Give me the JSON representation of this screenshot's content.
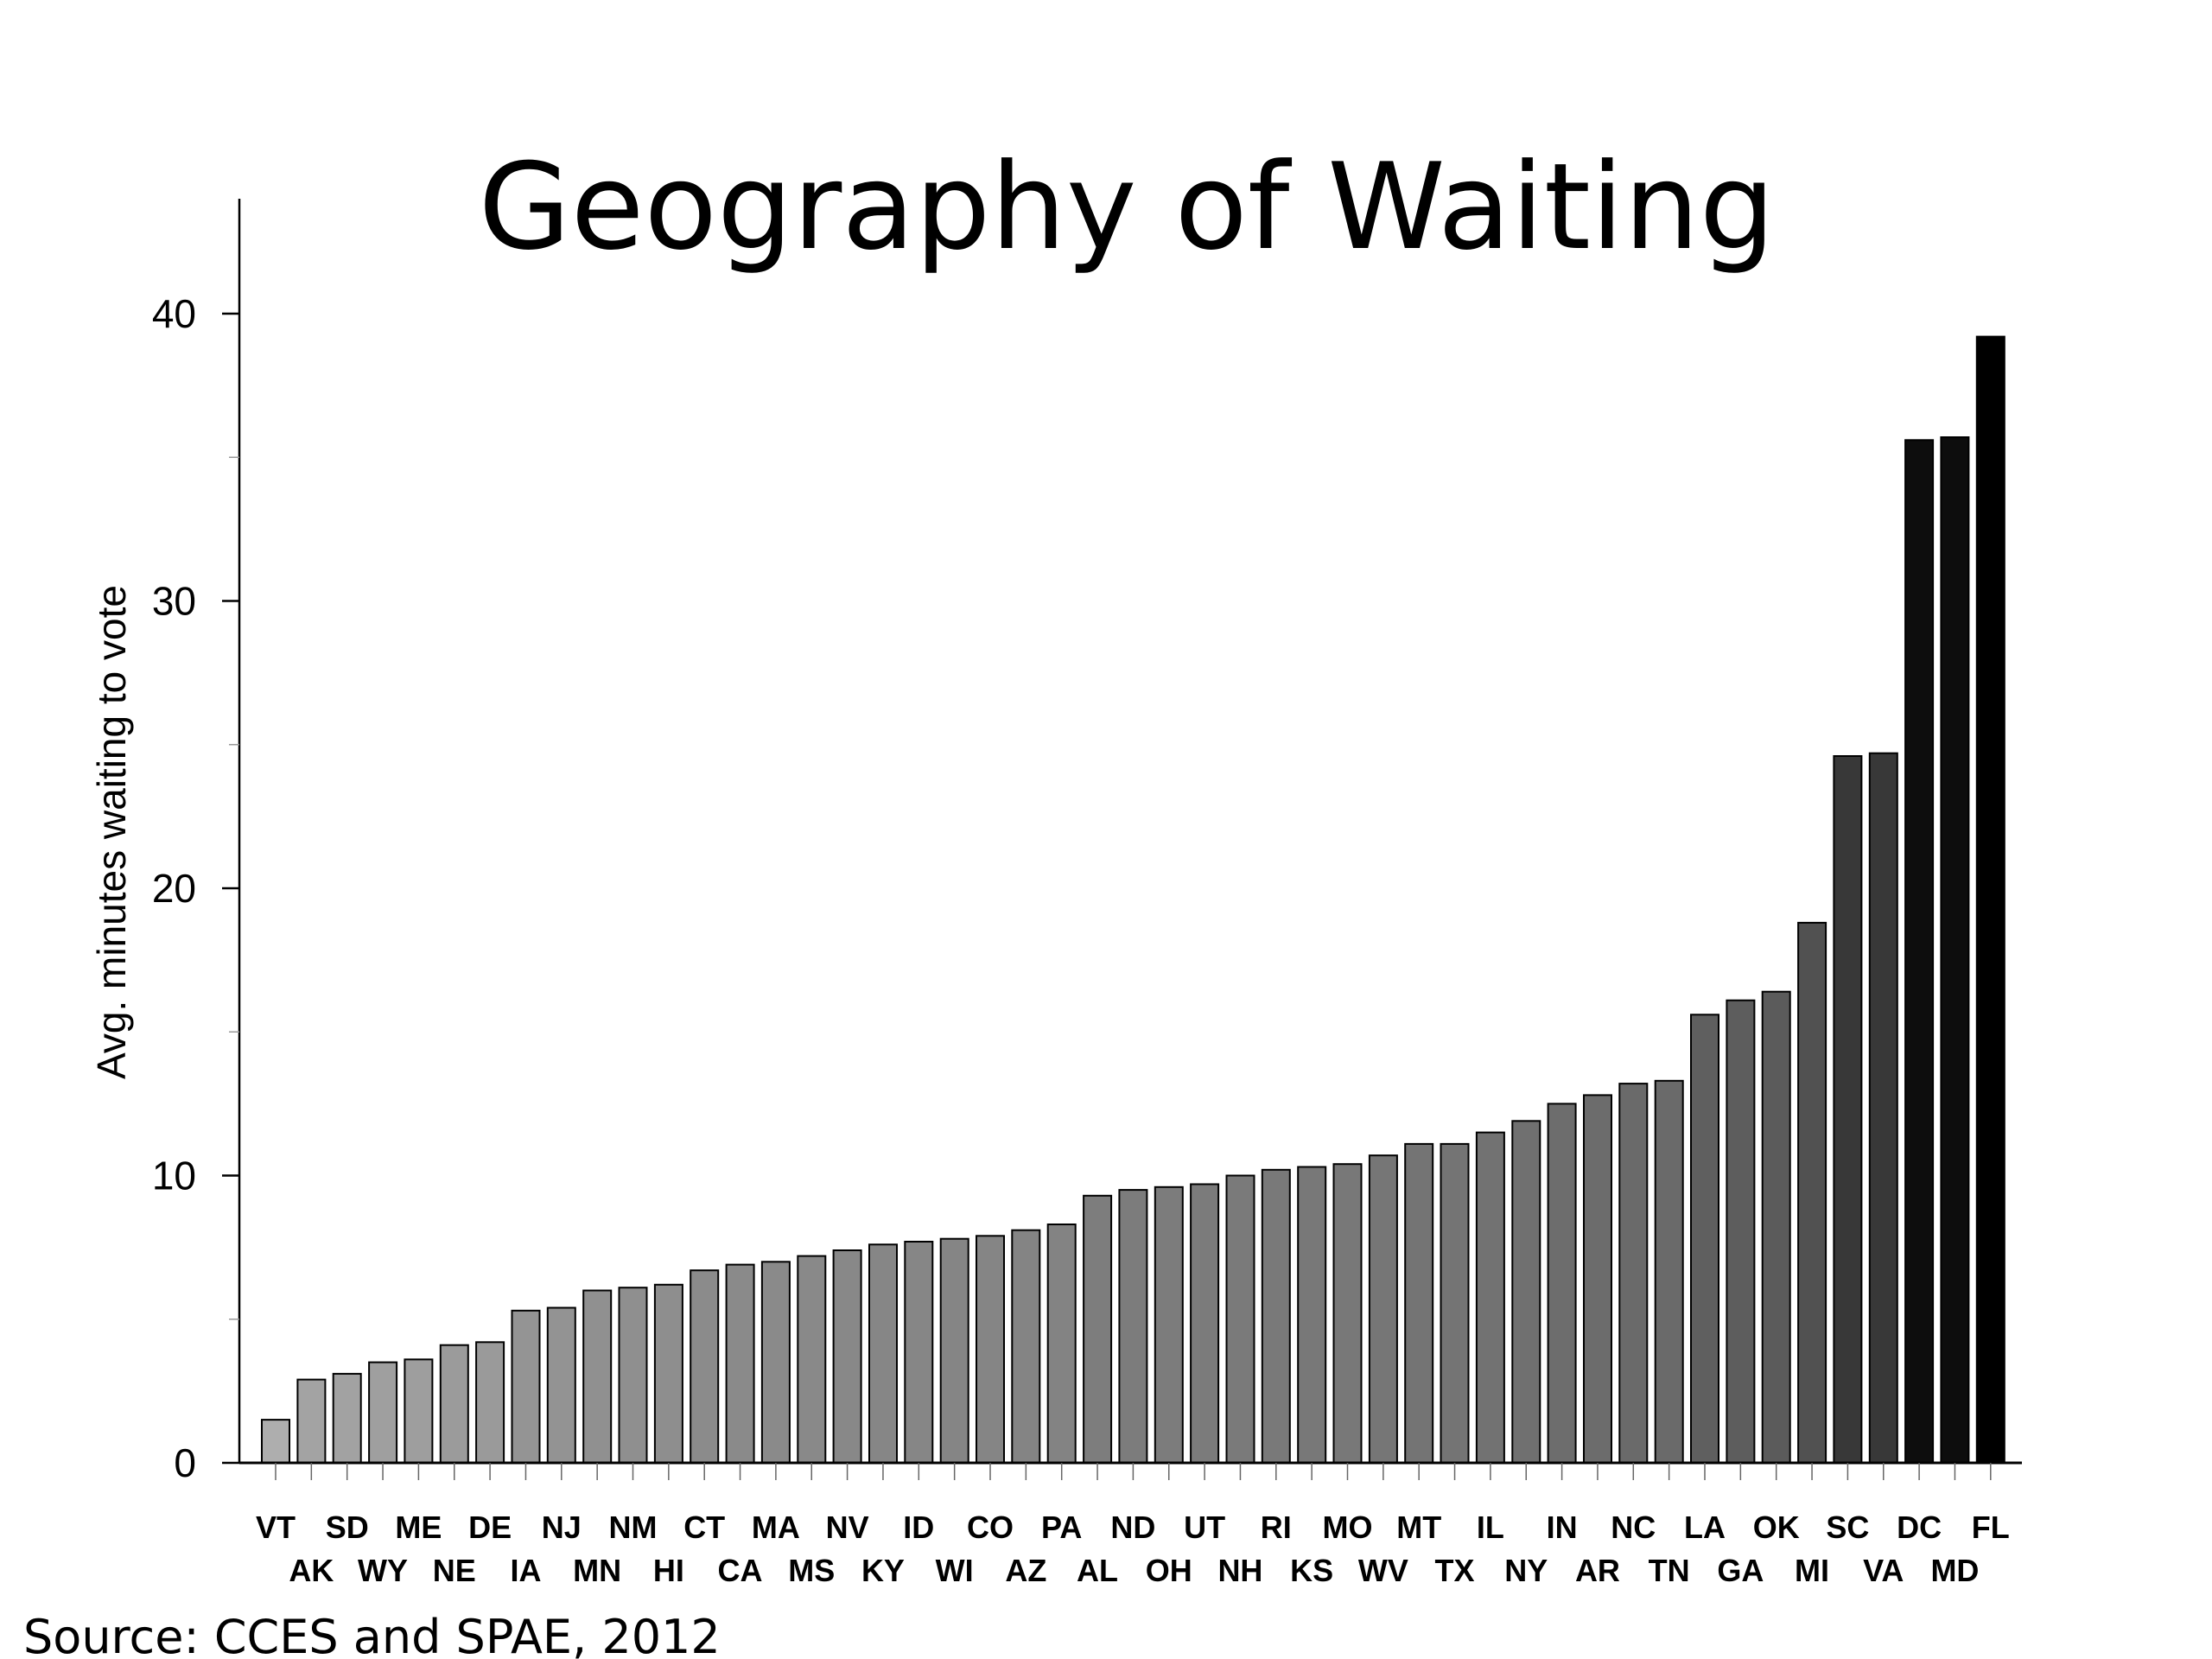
{
  "slide": {
    "title": "Geography of Waiting",
    "source": "Source:  CCES and SPAE, 2012"
  },
  "chart_data": {
    "type": "bar",
    "title": "Geography of Waiting",
    "xlabel": "",
    "ylabel": "Avg. minutes waiting to vote",
    "ylim": [
      0,
      44
    ],
    "yticks": [
      0,
      10,
      20,
      30,
      40
    ],
    "yminor_ticks": [
      5,
      15,
      25,
      35
    ],
    "grid": false,
    "legend": "none",
    "bar_fill": "grayscale gradient from light (#bdbdbd) to black (#000000), left to right",
    "categories": [
      "VT",
      "AK",
      "SD",
      "WY",
      "ME",
      "NE",
      "DE",
      "IA",
      "NJ",
      "MN",
      "NM",
      "HI",
      "CT",
      "CA",
      "MA",
      "MS",
      "NV",
      "KY",
      "ID",
      "WI",
      "CO",
      "AZ",
      "PA",
      "AL",
      "ND",
      "OH",
      "UT",
      "NH",
      "RI",
      "KS",
      "MO",
      "WV",
      "MT",
      "TX",
      "IL",
      "NY",
      "IN",
      "AR",
      "NC",
      "TN",
      "LA",
      "GA",
      "OK",
      "MI",
      "SC",
      "VA",
      "DC",
      "MD",
      "FL"
    ],
    "values": [
      1.5,
      2.9,
      3.1,
      3.5,
      3.6,
      4.1,
      4.2,
      5.3,
      5.4,
      6.0,
      6.1,
      6.2,
      6.7,
      6.9,
      7.0,
      7.2,
      7.4,
      7.6,
      7.7,
      7.8,
      7.9,
      8.1,
      8.3,
      9.3,
      9.5,
      9.6,
      9.7,
      10.0,
      10.2,
      10.3,
      10.4,
      10.7,
      11.1,
      11.1,
      11.5,
      11.9,
      12.5,
      12.8,
      13.2,
      13.3,
      15.6,
      16.1,
      16.4,
      18.8,
      24.6,
      24.7,
      35.6,
      35.7,
      39.2
    ]
  }
}
